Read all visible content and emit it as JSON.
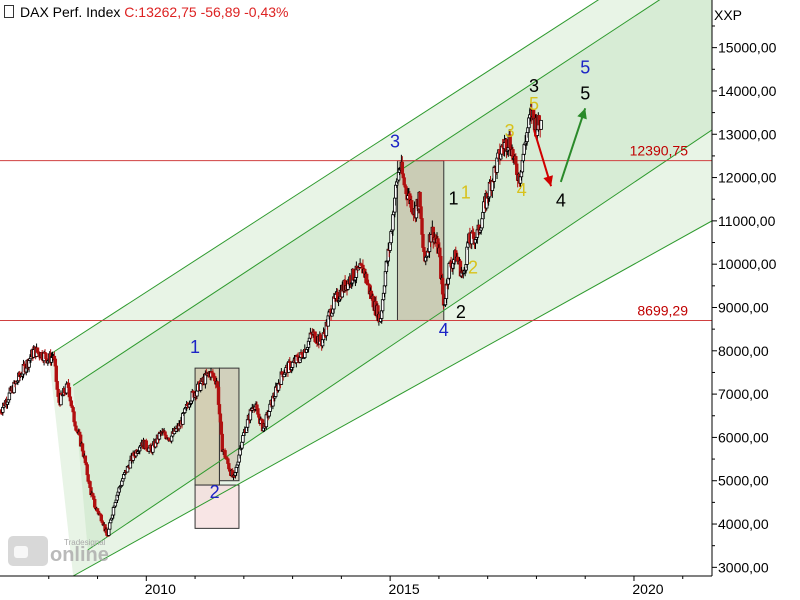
{
  "header": {
    "title": "DAX Perf. Index",
    "quote": "C:13262,75 -56,89 -0,43%"
  },
  "logo": {
    "main": "online",
    "sub": "Tradesignal"
  },
  "chart_data": {
    "type": "candlestick",
    "currency_label": "XXP",
    "y_axis": {
      "min": 2800,
      "max": 16100,
      "ticks": [
        3000,
        4000,
        5000,
        6000,
        7000,
        8000,
        9000,
        10000,
        11000,
        12000,
        13000,
        14000,
        15000
      ],
      "tick_labels": [
        "3000,00",
        "4000,00",
        "5000,00",
        "6000,00",
        "7000,00",
        "8000,00",
        "9000,00",
        "10000,00",
        "11000,00",
        "12000,00",
        "13000,00",
        "14000,00",
        "15000,00"
      ]
    },
    "x_axis": {
      "min": 2007.0,
      "max": 2021.6,
      "ticks": [
        2010,
        2015,
        2020
      ],
      "tick_labels": [
        "2010",
        "2015",
        "2020"
      ]
    },
    "price_path": [
      [
        2007.0,
        6600
      ],
      [
        2007.2,
        7000
      ],
      [
        2007.5,
        7600
      ],
      [
        2007.7,
        8000
      ],
      [
        2007.9,
        7900
      ],
      [
        2008.0,
        7800
      ],
      [
        2008.1,
        7900
      ],
      [
        2008.2,
        6800
      ],
      [
        2008.4,
        7200
      ],
      [
        2008.5,
        6500
      ],
      [
        2008.7,
        5700
      ],
      [
        2008.85,
        4800
      ],
      [
        2008.95,
        4400
      ],
      [
        2009.1,
        4100
      ],
      [
        2009.2,
        3700
      ],
      [
        2009.35,
        4500
      ],
      [
        2009.5,
        5000
      ],
      [
        2009.7,
        5500
      ],
      [
        2009.9,
        5900
      ],
      [
        2010.1,
        5700
      ],
      [
        2010.3,
        6100
      ],
      [
        2010.5,
        6000
      ],
      [
        2010.7,
        6300
      ],
      [
        2010.9,
        6900
      ],
      [
        2011.1,
        7200
      ],
      [
        2011.3,
        7500
      ],
      [
        2011.45,
        7300
      ],
      [
        2011.55,
        5800
      ],
      [
        2011.7,
        5300
      ],
      [
        2011.8,
        5000
      ],
      [
        2011.95,
        5900
      ],
      [
        2012.2,
        6800
      ],
      [
        2012.4,
        6200
      ],
      [
        2012.6,
        6900
      ],
      [
        2012.8,
        7500
      ],
      [
        2013.0,
        7700
      ],
      [
        2013.2,
        7900
      ],
      [
        2013.4,
        8400
      ],
      [
        2013.6,
        8200
      ],
      [
        2013.8,
        9000
      ],
      [
        2014.0,
        9400
      ],
      [
        2014.2,
        9700
      ],
      [
        2014.45,
        9900
      ],
      [
        2014.6,
        9300
      ],
      [
        2014.8,
        8700
      ],
      [
        2014.9,
        9800
      ],
      [
        2015.0,
        10500
      ],
      [
        2015.1,
        11600
      ],
      [
        2015.2,
        12300
      ],
      [
        2015.3,
        11800
      ],
      [
        2015.5,
        11200
      ],
      [
        2015.6,
        11500
      ],
      [
        2015.7,
        10000
      ],
      [
        2015.85,
        10800
      ],
      [
        2016.0,
        10300
      ],
      [
        2016.1,
        9000
      ],
      [
        2016.2,
        9900
      ],
      [
        2016.35,
        10200
      ],
      [
        2016.5,
        9700
      ],
      [
        2016.6,
        10500
      ],
      [
        2016.8,
        10700
      ],
      [
        2016.95,
        11400
      ],
      [
        2017.1,
        12000
      ],
      [
        2017.3,
        12700
      ],
      [
        2017.45,
        12900
      ],
      [
        2017.55,
        12300
      ],
      [
        2017.65,
        12000
      ],
      [
        2017.8,
        13000
      ],
      [
        2017.9,
        13500
      ],
      [
        2018.0,
        13200
      ],
      [
        2018.1,
        13262.75
      ]
    ],
    "levels": [
      {
        "value": 12390.75,
        "label": "12390,75"
      },
      {
        "value": 8699.29,
        "label": "8699,29"
      }
    ],
    "channels": [
      {
        "start": [
          2008.0,
          7900
        ],
        "end": [
          2021.6,
          17800
        ]
      },
      {
        "start": [
          2008.5,
          7200
        ],
        "end": [
          2021.6,
          16900
        ]
      },
      {
        "start": [
          2008.8,
          3400
        ],
        "end": [
          2021.6,
          13100
        ]
      },
      {
        "start": [
          2008.5,
          2800
        ],
        "end": [
          2021.6,
          11000
        ]
      }
    ],
    "boxes": [
      {
        "from": [
          2011.0,
          4900
        ],
        "to": [
          2011.5,
          7600
        ],
        "fill": "#d2c6a8"
      },
      {
        "from": [
          2011.5,
          5000
        ],
        "to": [
          2011.9,
          7600
        ],
        "fill": "#cfc7b3"
      },
      {
        "from": [
          2011.0,
          3900
        ],
        "to": [
          2011.9,
          4900
        ],
        "fill": "#f6dcdc"
      },
      {
        "from": [
          2015.15,
          8700
        ],
        "to": [
          2016.1,
          12390
        ],
        "fill": "#c5c2aa"
      }
    ],
    "arrows": [
      {
        "from": [
          2017.95,
          13100
        ],
        "to": [
          2018.3,
          11800
        ],
        "color": "#d00000"
      },
      {
        "from": [
          2018.5,
          11900
        ],
        "to": [
          2019.0,
          13600
        ],
        "color": "#2a8a2a"
      }
    ],
    "wave_labels": [
      {
        "text": "1",
        "x": 2011.0,
        "y": 7950,
        "color": "#1c24c6"
      },
      {
        "text": "2",
        "x": 2011.4,
        "y": 4600,
        "color": "#1c24c6"
      },
      {
        "text": "3",
        "x": 2015.1,
        "y": 12690,
        "color": "#1c24c6"
      },
      {
        "text": "4",
        "x": 2016.1,
        "y": 8340,
        "color": "#1c24c6"
      },
      {
        "text": "5",
        "x": 2019.0,
        "y": 14400,
        "color": "#1c24c6"
      },
      {
        "text": "1",
        "x": 2016.3,
        "y": 11380,
        "color": "#000000"
      },
      {
        "text": "2",
        "x": 2016.45,
        "y": 8760,
        "color": "#000000"
      },
      {
        "text": "3",
        "x": 2017.95,
        "y": 13970,
        "color": "#000000"
      },
      {
        "text": "4",
        "x": 2018.5,
        "y": 11330,
        "color": "#000000"
      },
      {
        "text": "5",
        "x": 2019.0,
        "y": 13800,
        "color": "#000000"
      },
      {
        "text": "1",
        "x": 2016.55,
        "y": 11520,
        "color": "#d8c21c"
      },
      {
        "text": "2",
        "x": 2016.7,
        "y": 9780,
        "color": "#d8c21c"
      },
      {
        "text": "3",
        "x": 2017.45,
        "y": 12940,
        "color": "#d8c21c"
      },
      {
        "text": "4",
        "x": 2017.7,
        "y": 11580,
        "color": "#d8c21c"
      },
      {
        "text": "5",
        "x": 2017.95,
        "y": 13560,
        "color": "#d8c21c"
      }
    ],
    "colors": {
      "level_line": "#d04040",
      "channel_line": "#2e9a2e",
      "channel_fill": "#d7ecd5",
      "candle_up": "#000000",
      "candle_down": "#b01010"
    }
  }
}
